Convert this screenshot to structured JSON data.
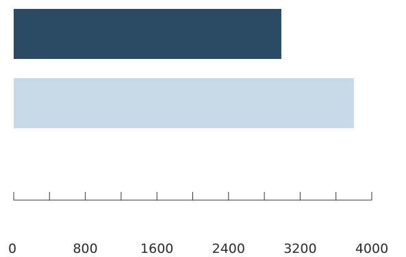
{
  "chart_data": {
    "type": "bar",
    "orientation": "horizontal",
    "categories": [
      "",
      ""
    ],
    "values": [
      2990,
      3800
    ],
    "colors": [
      "#2b4a63",
      "#c9d9e6"
    ],
    "xlim": [
      0,
      4000
    ],
    "xticks": [
      0,
      800,
      1600,
      2400,
      3200,
      4000
    ],
    "xtick_labels": [
      "0",
      "800",
      "1600",
      "2400",
      "3200",
      "4000"
    ],
    "minor_ticks_between_labels": true,
    "grid": false,
    "legend": "none",
    "title": "",
    "xlabel": "",
    "ylabel": ""
  }
}
